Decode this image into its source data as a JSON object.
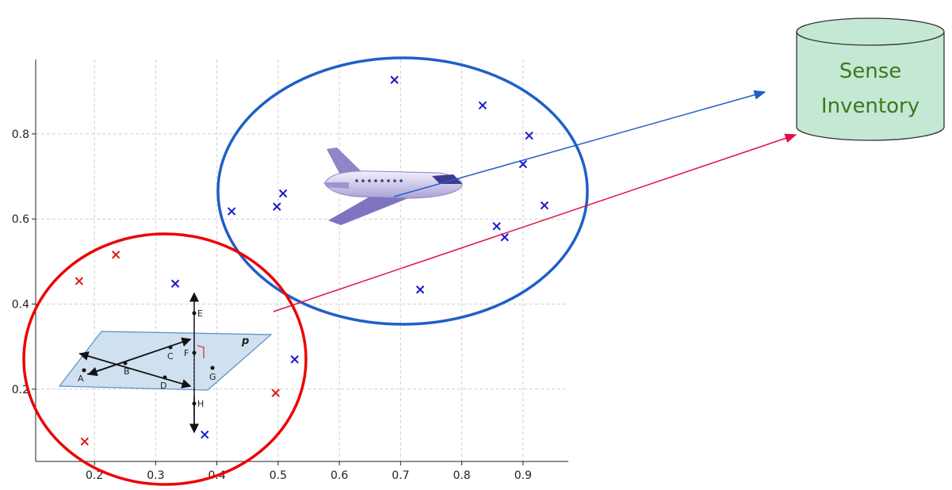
{
  "chart_data": {
    "type": "scatter",
    "xlim": [
      0.104,
      0.974
    ],
    "ylim": [
      0.03,
      0.975
    ],
    "xticks": [
      0.2,
      0.3,
      0.4,
      0.5,
      0.6,
      0.7,
      0.8,
      0.9
    ],
    "yticks": [
      0.2,
      0.4,
      0.6,
      0.8
    ],
    "grid": true,
    "series": [
      {
        "color": "#1a1acc",
        "x": [
          0.69,
          0.834,
          0.91,
          0.9,
          0.935,
          0.857,
          0.87,
          0.732,
          0.508,
          0.498,
          0.424,
          0.332,
          0.527,
          0.38
        ],
        "values": [
          0.927,
          0.867,
          0.796,
          0.729,
          0.632,
          0.583,
          0.557,
          0.434,
          0.66,
          0.629,
          0.618,
          0.448,
          0.27,
          0.093
        ]
      },
      {
        "color": "#dd1a1a",
        "x": [
          0.175,
          0.235,
          0.184,
          0.496
        ],
        "values": [
          0.454,
          0.516,
          0.077,
          0.191
        ]
      }
    ]
  },
  "diagram": {
    "database": {
      "lines": [
        "Sense",
        "Inventory"
      ]
    },
    "geometry": {
      "plane": "p",
      "points": [
        "A",
        "B",
        "C",
        "D",
        "E",
        "F",
        "G",
        "H"
      ]
    }
  }
}
